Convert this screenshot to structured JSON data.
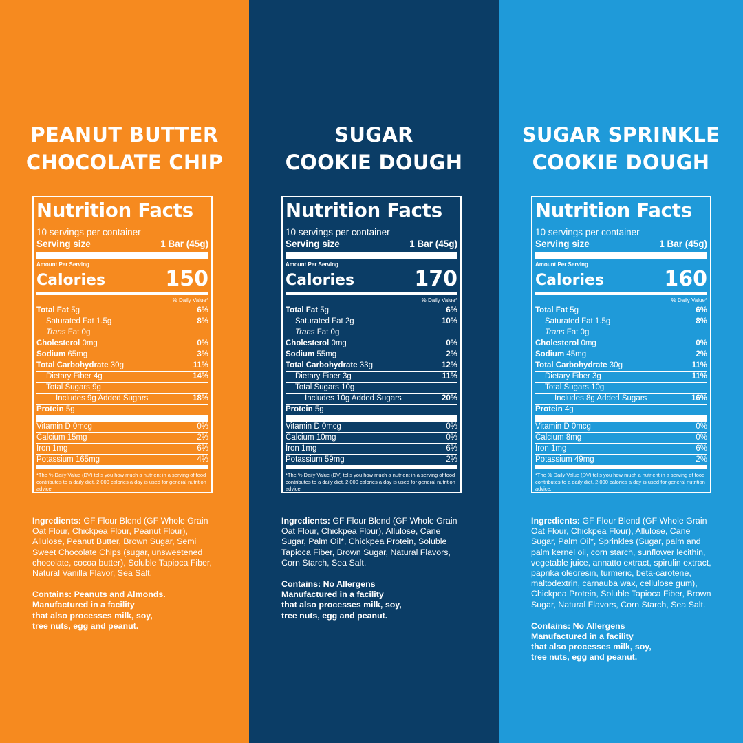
{
  "colors": {
    "orange": "#f68a1f",
    "navy": "#0b3d66",
    "blue": "#1f9ad9"
  },
  "labels": {
    "nutrition_facts": "Nutrition Facts",
    "servings": "10 servings per container",
    "serving_size": "Serving size",
    "serving_value": "1 Bar (45g)",
    "amount_per_serving": "Amount Per Serving",
    "calories": "Calories",
    "daily_value_header": "% Daily Value*",
    "total_fat": "Total Fat",
    "saturated_fat": "Saturated Fat",
    "trans": "Trans",
    "trans_fat_rest": " Fat 0g",
    "cholesterol": "Cholesterol",
    "sodium": "Sodium",
    "total_carb": "Total Carbohydrate",
    "dietary_fiber": "Dietary Fiber",
    "total_sugars": "Total Sugars",
    "includes": "Includes",
    "added_sugars": "Added Sugars",
    "protein": "Protein",
    "vitamin_d": "Vitamin D",
    "calcium": "Calcium",
    "iron": "Iron",
    "potassium": "Potassium",
    "footnote": "*The % Daily Value (DV) tells you how much a nutrient in a serving of food contributes to a daily diet. 2,000 calories a day is used for general nutrition advice.",
    "ingredients_label": "Ingredients:",
    "contains_label": "Contains:"
  },
  "products": [
    {
      "title_lines": [
        "PEANUT BUTTER",
        "CHOCOLATE CHIP"
      ],
      "calories": "150",
      "total_fat": " 5g",
      "total_fat_dv": "6%",
      "sat_fat": " 1.5g",
      "sat_fat_dv": "8%",
      "cholesterol": " 0mg",
      "cholesterol_dv": "0%",
      "sodium": " 65mg",
      "sodium_dv": "3%",
      "carb": " 30g",
      "carb_dv": "11%",
      "fiber": " 4g",
      "fiber_dv": "14%",
      "sugars": " 9g",
      "added": " 9g ",
      "added_dv": "18%",
      "protein": " 5g",
      "vitd": " 0mcg",
      "vitd_dv": "0%",
      "calcium": " 15mg",
      "calcium_dv": "2%",
      "iron": " 1mg",
      "iron_dv": "6%",
      "potassium": " 165mg",
      "potassium_dv": "4%",
      "ingredients": " GF Flour Blend (GF Whole Grain Oat Flour, Chickpea Flour, Peanut Flour), Allulose, Peanut Butter, Brown Sugar, Semi Sweet Chocolate Chips (sugar, unsweetened chocolate, cocoa butter), Soluble Tapioca Fiber, Natural Vanilla Flavor, Sea Salt.",
      "contains_lines": [
        "Contains: Peanuts and Almonds.",
        "Manufactured in a facility",
        "that also processes milk, soy,",
        "tree nuts, egg and peanut."
      ]
    },
    {
      "title_lines": [
        "SUGAR",
        "COOKIE DOUGH"
      ],
      "calories": "170",
      "total_fat": " 5g",
      "total_fat_dv": "6%",
      "sat_fat": " 2g",
      "sat_fat_dv": "10%",
      "cholesterol": " 0mg",
      "cholesterol_dv": "0%",
      "sodium": " 55mg",
      "sodium_dv": "2%",
      "carb": " 33g",
      "carb_dv": "12%",
      "fiber": " 3g",
      "fiber_dv": "11%",
      "sugars": " 10g",
      "added": " 10g ",
      "added_dv": "20%",
      "protein": " 5g",
      "vitd": " 0mcg",
      "vitd_dv": "0%",
      "calcium": " 10mg",
      "calcium_dv": "0%",
      "iron": " 1mg",
      "iron_dv": "6%",
      "potassium": " 59mg",
      "potassium_dv": "2%",
      "ingredients": " GF Flour Blend (GF Whole Grain Oat Flour, Chickpea Flour), Allulose, Cane Sugar, Palm Oil*, Chickpea Protein, Soluble Tapioca Fiber, Brown Sugar, Natural Flavors, Corn Starch, Sea Salt.",
      "contains_lines": [
        "Contains: No Allergens",
        "Manufactured in a facility",
        "that also processes milk, soy,",
        "tree nuts, egg and peanut."
      ]
    },
    {
      "title_lines": [
        "SUGAR SPRINKLE",
        "COOKIE DOUGH"
      ],
      "calories": "160",
      "total_fat": " 5g",
      "total_fat_dv": "6%",
      "sat_fat": " 1.5g",
      "sat_fat_dv": "8%",
      "cholesterol": " 0mg",
      "cholesterol_dv": "0%",
      "sodium": " 45mg",
      "sodium_dv": "2%",
      "carb": " 30g",
      "carb_dv": "11%",
      "fiber": " 3g",
      "fiber_dv": "11%",
      "sugars": " 10g",
      "added": " 8g ",
      "added_dv": "16%",
      "protein": " 4g",
      "vitd": " 0mcg",
      "vitd_dv": "0%",
      "calcium": " 8mg",
      "calcium_dv": "0%",
      "iron": " 1mg",
      "iron_dv": "6%",
      "potassium": " 49mg",
      "potassium_dv": "2%",
      "ingredients": " GF Flour Blend (GF Whole Grain Oat Flour, Chickpea Flour), Allulose, Cane Sugar, Palm Oil*, Sprinkles (Sugar, palm and palm kernel oil, corn starch, sunflower lecithin, vegetable juice, annatto extract, spirulin extract, paprika oleoresin, turmeric, beta-carotene, maltodextrin, carnauba wax, cellulose gum), Chickpea Protein, Soluble Tapioca Fiber, Brown Sugar, Natural Flavors, Corn Starch, Sea Salt.",
      "contains_lines": [
        "Contains: No Allergens",
        "Manufactured in a facility",
        "that also processes milk, soy,",
        "tree nuts, egg and peanut."
      ]
    }
  ]
}
